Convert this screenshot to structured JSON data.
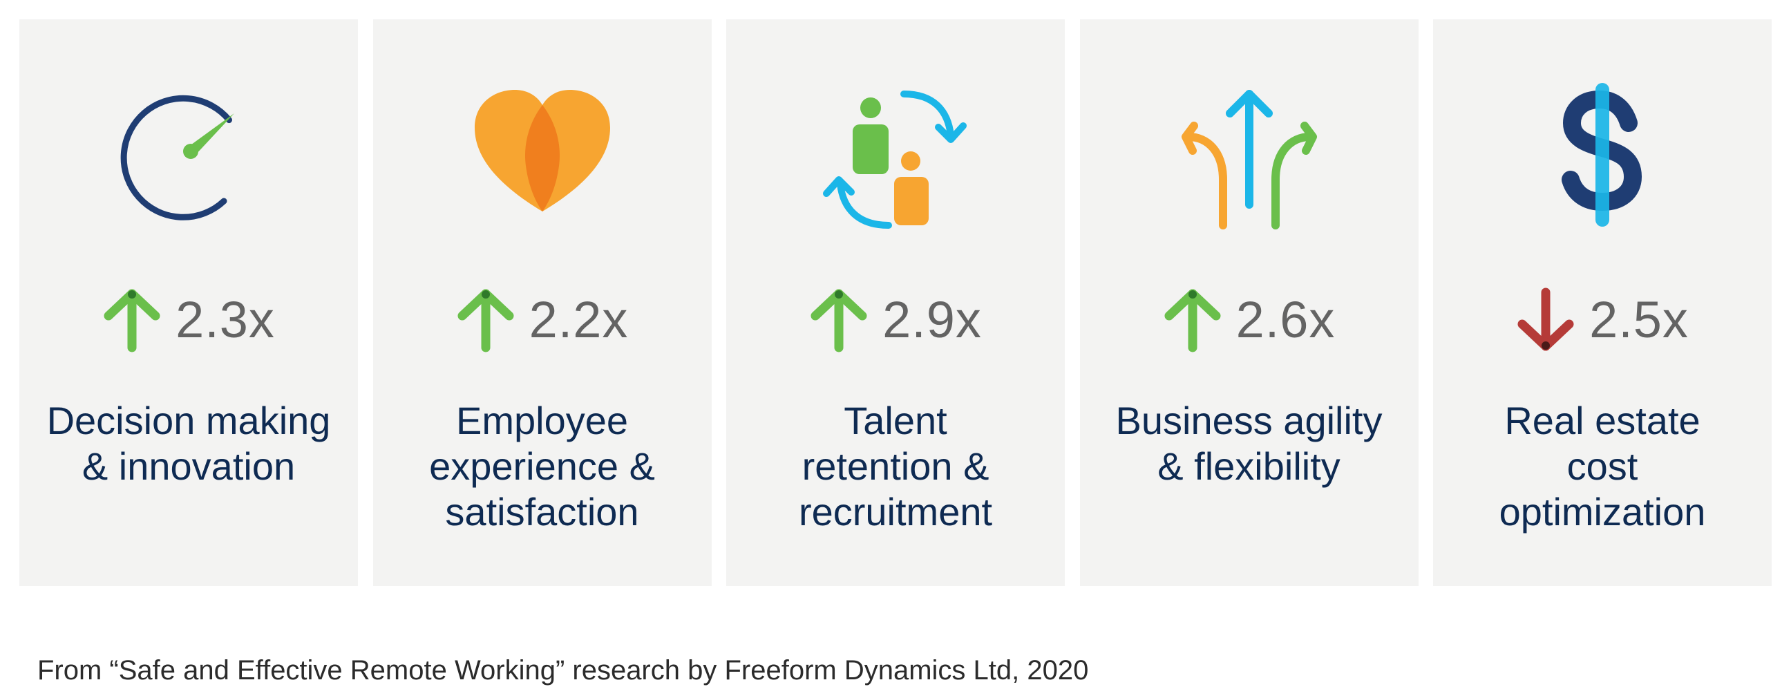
{
  "colors": {
    "card_background": "#f3f3f2",
    "up_arrow": "#6abf4b",
    "down_arrow": "#b53b38",
    "value_text": "#636363",
    "label_text": "#0e2a52",
    "navy": "#1f3d73",
    "green": "#6abf4b",
    "orange": "#f7a531",
    "dark_orange": "#f07f1e",
    "cyan": "#1bb6e8"
  },
  "cards": [
    {
      "icon": "speedometer-icon",
      "direction": "up",
      "value": "2.3x",
      "label_lines": [
        "Decision making",
        "& innovation"
      ]
    },
    {
      "icon": "heart-icon",
      "direction": "up",
      "value": "2.2x",
      "label_lines": [
        "Employee",
        "experience &",
        "satisfaction"
      ]
    },
    {
      "icon": "people-exchange-icon",
      "direction": "up",
      "value": "2.9x",
      "label_lines": [
        "Talent",
        "retention &",
        "recruitment"
      ]
    },
    {
      "icon": "diverging-arrows-icon",
      "direction": "up",
      "value": "2.6x",
      "label_lines": [
        "Business agility",
        "& flexibility"
      ]
    },
    {
      "icon": "dollar-icon",
      "direction": "down",
      "value": "2.5x",
      "label_lines": [
        "Real estate",
        "cost",
        "optimization"
      ]
    }
  ],
  "footnote": "From “Safe and Effective Remote Working” research by Freeform Dynamics Ltd, 2020"
}
